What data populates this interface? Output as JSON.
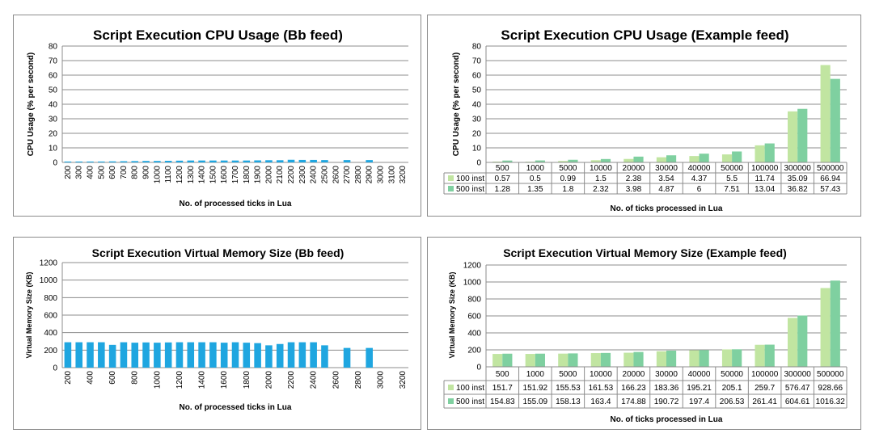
{
  "colors": {
    "bar_blue": "#1fa6e0",
    "light_green": "#c1e5a1",
    "dark_green": "#7fd0a0",
    "grid": "#8c8c8c"
  },
  "charts": [
    {
      "type": "bar",
      "title": "Script Execution CPU Usage (Bb feed)",
      "ylabel": "CPU Usage (% per second)",
      "xlabel": "No. of processed  ticks in Lua",
      "ylim": [
        0,
        80
      ],
      "yticks": [
        "0",
        "10",
        "20",
        "30",
        "40",
        "50",
        "60",
        "70",
        "80"
      ],
      "categories": [
        "200",
        "300",
        "400",
        "500",
        "600",
        "700",
        "800",
        "900",
        "1000",
        "1100",
        "1200",
        "1300",
        "1400",
        "1500",
        "1600",
        "1700",
        "1800",
        "1900",
        "2000",
        "2100",
        "2200",
        "2300",
        "2400",
        "2500",
        "2600",
        "2700",
        "2800",
        "2900",
        "3000",
        "3100",
        "3200"
      ],
      "values": [
        0.6,
        0.6,
        0.6,
        0.6,
        0.7,
        0.8,
        0.9,
        1.0,
        1.0,
        1.1,
        1.2,
        1.3,
        1.3,
        1.3,
        1.3,
        1.3,
        1.3,
        1.4,
        1.5,
        1.5,
        1.8,
        1.7,
        1.7,
        1.6,
        0,
        1.6,
        0,
        1.6,
        0,
        0,
        0
      ],
      "grid": true,
      "legend": "none"
    },
    {
      "type": "bar",
      "title": "Script Execution CPU Usage (Example feed)",
      "ylabel": "CPU Usage (% per second)",
      "xlabel": "No. of ticks processed in Lua",
      "ylim": [
        0,
        80
      ],
      "yticks": [
        "0",
        "10",
        "20",
        "30",
        "40",
        "50",
        "60",
        "70",
        "80"
      ],
      "categories": [
        "500",
        "1000",
        "5000",
        "10000",
        "20000",
        "30000",
        "40000",
        "50000",
        "100000",
        "300000",
        "500000"
      ],
      "series": [
        {
          "name": "100 inst",
          "values": [
            0.57,
            0.5,
            0.99,
            1.5,
            2.38,
            3.54,
            4.37,
            5.5,
            11.74,
            35.09,
            66.94
          ],
          "labels": [
            "0.57",
            "0.5",
            "0.99",
            "1.5",
            "2.38",
            "3.54",
            "4.37",
            "5.5",
            "11.74",
            "35.09",
            "66.94"
          ]
        },
        {
          "name": "500 inst",
          "values": [
            1.28,
            1.35,
            1.8,
            2.32,
            3.98,
            4.87,
            6,
            7.51,
            13.04,
            36.82,
            57.43
          ],
          "labels": [
            "1.28",
            "1.35",
            "1.8",
            "2.32",
            "3.98",
            "4.87",
            "6",
            "7.51",
            "13.04",
            "36.82",
            "57.43"
          ]
        }
      ],
      "grid": true,
      "legend": "data table below chart"
    },
    {
      "type": "bar",
      "title": "Script Execution Virtual Memory Size (Bb feed)",
      "ylabel": "Virtual Memory  Size (KB)",
      "xlabel": "No. of processed  ticks in Lua",
      "ylim": [
        0,
        1200
      ],
      "yticks": [
        "0",
        "200",
        "400",
        "600",
        "800",
        "1000",
        "1200"
      ],
      "categories": [
        "200",
        "300",
        "400",
        "500",
        "600",
        "700",
        "800",
        "900",
        "1000",
        "1100",
        "1200",
        "1300",
        "1400",
        "1500",
        "1600",
        "1700",
        "1800",
        "1900",
        "2000",
        "2100",
        "2200",
        "2300",
        "2400",
        "2500",
        "2600",
        "2700",
        "2800",
        "2900",
        "3000",
        "3100",
        "3200"
      ],
      "tick_labels": [
        "200",
        "",
        "400",
        "",
        "600",
        "",
        "800",
        "",
        "1000",
        "",
        "1200",
        "",
        "1400",
        "",
        "1600",
        "",
        "1800",
        "",
        "2000",
        "",
        "2200",
        "",
        "2400",
        "",
        "2600",
        "",
        "2800",
        "",
        "3000",
        "",
        "3200"
      ],
      "values": [
        290,
        290,
        290,
        290,
        260,
        290,
        285,
        288,
        285,
        288,
        290,
        290,
        290,
        290,
        285,
        290,
        285,
        280,
        255,
        270,
        290,
        290,
        290,
        255,
        0,
        225,
        0,
        225,
        0,
        0,
        0
      ],
      "grid": true,
      "legend": "none"
    },
    {
      "type": "bar",
      "title": "Script Execution Virtual Memory Size (Example feed)",
      "ylabel": "Virtual Memory Size (KB)",
      "xlabel": "No. of ticks processed in Lua",
      "ylim": [
        0,
        1200
      ],
      "yticks": [
        "0",
        "200",
        "400",
        "600",
        "800",
        "1000",
        "1200"
      ],
      "categories": [
        "500",
        "1000",
        "5000",
        "10000",
        "20000",
        "30000",
        "40000",
        "50000",
        "100000",
        "300000",
        "500000"
      ],
      "series": [
        {
          "name": "100 inst",
          "values": [
            151.7,
            151.92,
            155.53,
            161.53,
            166.23,
            183.36,
            195.21,
            205.1,
            259.7,
            576.47,
            928.66
          ],
          "labels": [
            "151.7",
            "151.92",
            "155.53",
            "161.53",
            "166.23",
            "183.36",
            "195.21",
            "205.1",
            "259.7",
            "576.47",
            "928.66"
          ]
        },
        {
          "name": "500 inst",
          "values": [
            154.83,
            155.09,
            158.13,
            163.4,
            174.88,
            190.72,
            197.4,
            206.53,
            261.41,
            604.61,
            1016.32
          ],
          "labels": [
            "154.83",
            "155.09",
            "158.13",
            "163.4",
            "174.88",
            "190.72",
            "197.4",
            "206.53",
            "261.41",
            "604.61",
            "1016.32"
          ]
        }
      ],
      "grid": true,
      "legend": "data table below chart"
    }
  ],
  "chart_data": [
    {
      "type": "bar",
      "title": "Script Execution CPU Usage (Bb feed)",
      "xlabel": "No. of processed  ticks in Lua",
      "ylabel": "CPU Usage (% per second)",
      "ylim": [
        0,
        80
      ],
      "categories": [
        "200",
        "300",
        "400",
        "500",
        "600",
        "700",
        "800",
        "900",
        "1000",
        "1100",
        "1200",
        "1300",
        "1400",
        "1500",
        "1600",
        "1700",
        "1800",
        "1900",
        "2000",
        "2100",
        "2200",
        "2300",
        "2400",
        "2500",
        "2600",
        "2700",
        "2800",
        "2900",
        "3000",
        "3100",
        "3200"
      ],
      "values": [
        0.6,
        0.6,
        0.6,
        0.6,
        0.7,
        0.8,
        0.9,
        1.0,
        1.0,
        1.1,
        1.2,
        1.3,
        1.3,
        1.3,
        1.3,
        1.3,
        1.3,
        1.4,
        1.5,
        1.5,
        1.8,
        1.7,
        1.7,
        1.6,
        0,
        1.6,
        0,
        1.6,
        0,
        0,
        0
      ]
    },
    {
      "type": "bar",
      "title": "Script Execution CPU Usage (Example feed)",
      "xlabel": "No. of ticks processed in Lua",
      "ylabel": "CPU Usage (% per second)",
      "ylim": [
        0,
        80
      ],
      "categories": [
        "500",
        "1000",
        "5000",
        "10000",
        "20000",
        "30000",
        "40000",
        "50000",
        "100000",
        "300000",
        "500000"
      ],
      "series": [
        {
          "name": "100 inst",
          "values": [
            0.57,
            0.5,
            0.99,
            1.5,
            2.38,
            3.54,
            4.37,
            5.5,
            11.74,
            35.09,
            66.94
          ]
        },
        {
          "name": "500 inst",
          "values": [
            1.28,
            1.35,
            1.8,
            2.32,
            3.98,
            4.87,
            6,
            7.51,
            13.04,
            36.82,
            57.43
          ]
        }
      ]
    },
    {
      "type": "bar",
      "title": "Script Execution Virtual Memory Size (Bb feed)",
      "xlabel": "No. of processed  ticks in Lua",
      "ylabel": "Virtual Memory  Size (KB)",
      "ylim": [
        0,
        1200
      ],
      "categories": [
        "200",
        "300",
        "400",
        "500",
        "600",
        "700",
        "800",
        "900",
        "1000",
        "1100",
        "1200",
        "1300",
        "1400",
        "1500",
        "1600",
        "1700",
        "1800",
        "1900",
        "2000",
        "2100",
        "2200",
        "2300",
        "2400",
        "2500",
        "2600",
        "2700",
        "2800",
        "2900",
        "3000",
        "3100",
        "3200"
      ],
      "values": [
        290,
        290,
        290,
        290,
        260,
        290,
        285,
        288,
        285,
        288,
        290,
        290,
        290,
        290,
        285,
        290,
        285,
        280,
        255,
        270,
        290,
        290,
        290,
        255,
        0,
        225,
        0,
        225,
        0,
        0,
        0
      ]
    },
    {
      "type": "bar",
      "title": "Script Execution Virtual Memory Size (Example feed)",
      "xlabel": "No. of ticks processed in Lua",
      "ylabel": "Virtual Memory Size (KB)",
      "ylim": [
        0,
        1200
      ],
      "categories": [
        "500",
        "1000",
        "5000",
        "10000",
        "20000",
        "30000",
        "40000",
        "50000",
        "100000",
        "300000",
        "500000"
      ],
      "series": [
        {
          "name": "100 inst",
          "values": [
            151.7,
            151.92,
            155.53,
            161.53,
            166.23,
            183.36,
            195.21,
            205.1,
            259.7,
            576.47,
            928.66
          ]
        },
        {
          "name": "500 inst",
          "values": [
            154.83,
            155.09,
            158.13,
            163.4,
            174.88,
            190.72,
            197.4,
            206.53,
            261.41,
            604.61,
            1016.32
          ]
        }
      ]
    }
  ]
}
